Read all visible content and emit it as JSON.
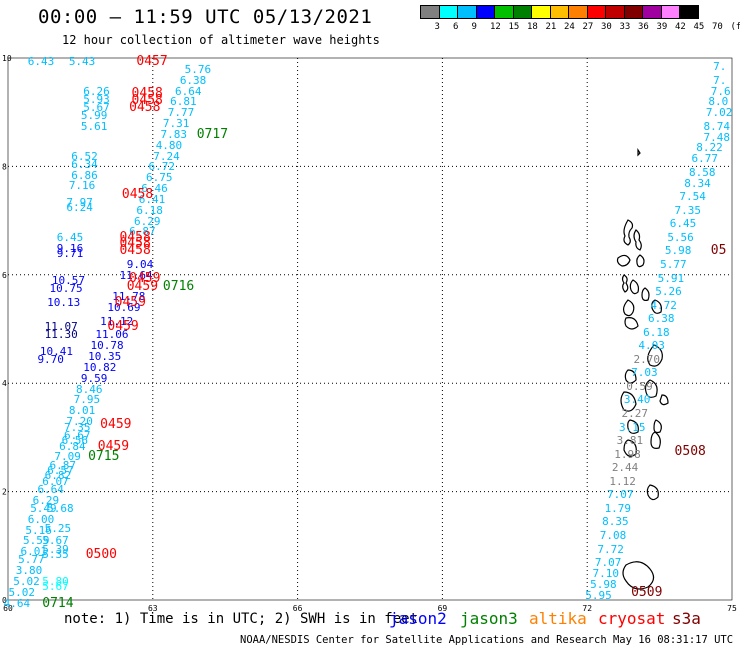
{
  "title": "00:00 – 11:59 UTC 05/13/2021",
  "subtitle": "12 hour collection of altimeter wave heights",
  "legend": {
    "colors": [
      "#808080",
      "#00ffff",
      "#00bfff",
      "#0000ff",
      "#00c000",
      "#008000",
      "#ffff00",
      "#ffbf00",
      "#ff8000",
      "#ff0000",
      "#c00000",
      "#800000",
      "#a000a0",
      "#ff80ff",
      "#000000"
    ],
    "labels": [
      "3",
      "6",
      "9",
      "12",
      "15",
      "18",
      "21",
      "24",
      "27",
      "30",
      "33",
      "36",
      "39",
      "42",
      "45",
      "70",
      "(ft)"
    ]
  },
  "axes": {
    "x_ticks": [
      "60",
      "63",
      "66",
      "69",
      "72",
      "75"
    ],
    "y_ticks": [
      "0",
      "2",
      "4",
      "6",
      "8",
      "10"
    ]
  },
  "note": "note:  1) Time is in UTC;  2) SWH is in feet",
  "satellites": [
    {
      "name": "jason2",
      "color": "#0000ff"
    },
    {
      "name": "jason3",
      "color": "#008000"
    },
    {
      "name": "altika",
      "color": "#ff8000"
    },
    {
      "name": "cryosat",
      "color": "#ff0000"
    },
    {
      "name": "s3a",
      "color": "#800000"
    }
  ],
  "credit": "NOAA/NESDIS Center for Satellite Applications and Research    May 16 08:31:17 UTC 2021",
  "wave_heights": [
    {
      "t": "6.43",
      "x": 60.7,
      "y": 9.95,
      "c": "#00bfff"
    },
    {
      "t": "5.43",
      "x": 61.55,
      "y": 9.95,
      "c": "#00bfff"
    },
    {
      "t": "5.76",
      "x": 63.95,
      "y": 9.8,
      "c": "#00bfff"
    },
    {
      "t": "6.38",
      "x": 63.85,
      "y": 9.6,
      "c": "#00bfff"
    },
    {
      "t": "6.64",
      "x": 63.75,
      "y": 9.4,
      "c": "#00bfff"
    },
    {
      "t": "6.81",
      "x": 63.65,
      "y": 9.2,
      "c": "#00bfff"
    },
    {
      "t": "7.77",
      "x": 63.6,
      "y": 9.0,
      "c": "#00bfff"
    },
    {
      "t": "7.31",
      "x": 63.5,
      "y": 8.8,
      "c": "#00bfff"
    },
    {
      "t": "7.83",
      "x": 63.45,
      "y": 8.6,
      "c": "#00bfff"
    },
    {
      "t": "4.80",
      "x": 63.35,
      "y": 8.4,
      "c": "#00bfff"
    },
    {
      "t": "7.24",
      "x": 63.3,
      "y": 8.2,
      "c": "#00bfff"
    },
    {
      "t": "6.72",
      "x": 63.2,
      "y": 8.0,
      "c": "#00bfff"
    },
    {
      "t": "6.75",
      "x": 63.15,
      "y": 7.8,
      "c": "#00bfff"
    },
    {
      "t": "6.46",
      "x": 63.05,
      "y": 7.6,
      "c": "#00bfff"
    },
    {
      "t": "6.41",
      "x": 63.0,
      "y": 7.4,
      "c": "#00bfff"
    },
    {
      "t": "6.18",
      "x": 62.95,
      "y": 7.2,
      "c": "#00bfff"
    },
    {
      "t": "6.29",
      "x": 62.9,
      "y": 7.0,
      "c": "#00bfff"
    },
    {
      "t": "6.87",
      "x": 62.8,
      "y": 6.8,
      "c": "#00bfff"
    },
    {
      "t": "6.26",
      "x": 61.85,
      "y": 9.4,
      "c": "#00bfff"
    },
    {
      "t": "5.93",
      "x": 61.85,
      "y": 9.25,
      "c": "#00bfff"
    },
    {
      "t": "5.67",
      "x": 61.85,
      "y": 9.1,
      "c": "#00bfff"
    },
    {
      "t": "5.99",
      "x": 61.8,
      "y": 8.95,
      "c": "#00bfff"
    },
    {
      "t": "5.61",
      "x": 61.8,
      "y": 8.75,
      "c": "#00bfff"
    },
    {
      "t": "6.52",
      "x": 61.6,
      "y": 8.2,
      "c": "#00bfff"
    },
    {
      "t": "6.34",
      "x": 61.6,
      "y": 8.05,
      "c": "#00bfff"
    },
    {
      "t": "6.86",
      "x": 61.6,
      "y": 7.85,
      "c": "#00bfff"
    },
    {
      "t": "7.16",
      "x": 61.55,
      "y": 7.65,
      "c": "#00bfff"
    },
    {
      "t": "7.97",
      "x": 61.5,
      "y": 7.35,
      "c": "#00bfff"
    },
    {
      "t": "6.24",
      "x": 61.5,
      "y": 7.25,
      "c": "#00bfff"
    },
    {
      "t": "6.45",
      "x": 61.3,
      "y": 6.7,
      "c": "#00bfff"
    },
    {
      "t": "9.16",
      "x": 61.3,
      "y": 6.5,
      "c": "#0000ff"
    },
    {
      "t": "9.71",
      "x": 61.3,
      "y": 6.4,
      "c": "#0000ff"
    },
    {
      "t": "9.04",
      "x": 62.75,
      "y": 6.2,
      "c": "#0000ff"
    },
    {
      "t": "11.64",
      "x": 62.6,
      "y": 6.0,
      "c": "#0000ff"
    },
    {
      "t": "10.57",
      "x": 61.2,
      "y": 5.9,
      "c": "#0000ff"
    },
    {
      "t": "10.75",
      "x": 61.15,
      "y": 5.75,
      "c": "#0000ff"
    },
    {
      "t": "11.78",
      "x": 62.45,
      "y": 5.6,
      "c": "#0000ff"
    },
    {
      "t": "10.13",
      "x": 61.1,
      "y": 5.5,
      "c": "#0000ff"
    },
    {
      "t": "10.69",
      "x": 62.35,
      "y": 5.4,
      "c": "#0000ff"
    },
    {
      "t": "11.12",
      "x": 62.2,
      "y": 5.15,
      "c": "#0000ff"
    },
    {
      "t": "11.07",
      "x": 61.05,
      "y": 5.05,
      "c": "#000080"
    },
    {
      "t": "11.30",
      "x": 61.05,
      "y": 4.9,
      "c": "#000080"
    },
    {
      "t": "11.06",
      "x": 62.1,
      "y": 4.9,
      "c": "#0000ff"
    },
    {
      "t": "10.78",
      "x": 62.0,
      "y": 4.7,
      "c": "#0000ff"
    },
    {
      "t": "10.41",
      "x": 60.95,
      "y": 4.6,
      "c": "#0000ff"
    },
    {
      "t": "10.35",
      "x": 61.95,
      "y": 4.5,
      "c": "#0000ff"
    },
    {
      "t": "9.70",
      "x": 60.9,
      "y": 4.45,
      "c": "#0000ff"
    },
    {
      "t": "10.82",
      "x": 61.85,
      "y": 4.3,
      "c": "#0000ff"
    },
    {
      "t": "9.59",
      "x": 61.8,
      "y": 4.1,
      "c": "#0000ff"
    },
    {
      "t": "8.46",
      "x": 61.7,
      "y": 3.9,
      "c": "#00bfff"
    },
    {
      "t": "7.95",
      "x": 61.65,
      "y": 3.7,
      "c": "#00bfff"
    },
    {
      "t": "8.01",
      "x": 61.55,
      "y": 3.5,
      "c": "#00bfff"
    },
    {
      "t": "7.20",
      "x": 61.5,
      "y": 3.3,
      "c": "#00bfff"
    },
    {
      "t": "7.35",
      "x": 61.45,
      "y": 3.2,
      "c": "#00bfff"
    },
    {
      "t": "6.67",
      "x": 61.45,
      "y": 3.05,
      "c": "#00bfff"
    },
    {
      "t": "6.56",
      "x": 61.4,
      "y": 2.95,
      "c": "#00bfff"
    },
    {
      "t": "6.84",
      "x": 61.35,
      "y": 2.85,
      "c": "#00bfff"
    },
    {
      "t": "7.09",
      "x": 61.25,
      "y": 2.65,
      "c": "#00bfff"
    },
    {
      "t": "6.87",
      "x": 61.15,
      "y": 2.5,
      "c": "#00bfff"
    },
    {
      "t": "6.57",
      "x": 61.1,
      "y": 2.4,
      "c": "#00bfff"
    },
    {
      "t": "6.82",
      "x": 61.05,
      "y": 2.3,
      "c": "#00bfff"
    },
    {
      "t": "6.07",
      "x": 61.0,
      "y": 2.2,
      "c": "#00bfff"
    },
    {
      "t": "6.64",
      "x": 60.9,
      "y": 2.05,
      "c": "#00bfff"
    },
    {
      "t": "6.29",
      "x": 60.8,
      "y": 1.85,
      "c": "#00bfff"
    },
    {
      "t": "5.49",
      "x": 60.75,
      "y": 1.7,
      "c": "#00bfff"
    },
    {
      "t": "5.68",
      "x": 61.1,
      "y": 1.7,
      "c": "#00bfff"
    },
    {
      "t": "6.00",
      "x": 60.7,
      "y": 1.5,
      "c": "#00bfff"
    },
    {
      "t": "5.16",
      "x": 60.65,
      "y": 1.3,
      "c": "#00bfff"
    },
    {
      "t": "5.25",
      "x": 61.05,
      "y": 1.32,
      "c": "#00bfff"
    },
    {
      "t": "5.59",
      "x": 60.6,
      "y": 1.1,
      "c": "#00bfff"
    },
    {
      "t": "5.67",
      "x": 61.0,
      "y": 1.1,
      "c": "#00bfff"
    },
    {
      "t": "6.01",
      "x": 60.55,
      "y": 0.9,
      "c": "#00bfff"
    },
    {
      "t": "5.39",
      "x": 61.0,
      "y": 0.95,
      "c": "#00bfff"
    },
    {
      "t": "5.35",
      "x": 61.0,
      "y": 0.85,
      "c": "#00bfff"
    },
    {
      "t": "5.77",
      "x": 60.5,
      "y": 0.75,
      "c": "#00bfff"
    },
    {
      "t": "3.80",
      "x": 60.45,
      "y": 0.55,
      "c": "#00bfff"
    },
    {
      "t": "5.02",
      "x": 60.4,
      "y": 0.35,
      "c": "#00bfff"
    },
    {
      "t": "5.02",
      "x": 60.3,
      "y": 0.15,
      "c": "#00bfff"
    },
    {
      "t": "5.80",
      "x": 61.0,
      "y": 0.35,
      "c": "#00ffff"
    },
    {
      "t": "5.67",
      "x": 61.0,
      "y": 0.25,
      "c": "#00ffff"
    },
    {
      "t": "4.64",
      "x": 60.2,
      "y": -0.05,
      "c": "#00bfff"
    },
    {
      "t": "7.",
      "x": 74.9,
      "y": 9.85,
      "c": "#00bfff"
    },
    {
      "t": "7.",
      "x": 74.9,
      "y": 9.6,
      "c": "#00bfff"
    },
    {
      "t": "7.6",
      "x": 74.85,
      "y": 9.4,
      "c": "#00bfff"
    },
    {
      "t": "8.0",
      "x": 74.8,
      "y": 9.2,
      "c": "#00bfff"
    },
    {
      "t": "7.02",
      "x": 74.75,
      "y": 9.0,
      "c": "#00bfff"
    },
    {
      "t": "8.74",
      "x": 74.7,
      "y": 8.75,
      "c": "#00bfff"
    },
    {
      "t": "7.48",
      "x": 74.7,
      "y": 8.55,
      "c": "#00bfff"
    },
    {
      "t": "8.22",
      "x": 74.55,
      "y": 8.35,
      "c": "#00bfff"
    },
    {
      "t": "6.77",
      "x": 74.45,
      "y": 8.15,
      "c": "#00bfff"
    },
    {
      "t": "8.58",
      "x": 74.4,
      "y": 7.9,
      "c": "#00bfff"
    },
    {
      "t": "8.34",
      "x": 74.3,
      "y": 7.7,
      "c": "#00bfff"
    },
    {
      "t": "7.54",
      "x": 74.2,
      "y": 7.45,
      "c": "#00bfff"
    },
    {
      "t": "7.35",
      "x": 74.1,
      "y": 7.2,
      "c": "#00bfff"
    },
    {
      "t": "6.45",
      "x": 74.0,
      "y": 6.95,
      "c": "#00bfff"
    },
    {
      "t": "5.56",
      "x": 73.95,
      "y": 6.7,
      "c": "#00bfff"
    },
    {
      "t": "5.98",
      "x": 73.9,
      "y": 6.45,
      "c": "#00bfff"
    },
    {
      "t": "5.77",
      "x": 73.8,
      "y": 6.2,
      "c": "#00bfff"
    },
    {
      "t": "5.91",
      "x": 73.75,
      "y": 5.95,
      "c": "#00bfff"
    },
    {
      "t": "5.26",
      "x": 73.7,
      "y": 5.7,
      "c": "#00bfff"
    },
    {
      "t": "4.72",
      "x": 73.6,
      "y": 5.45,
      "c": "#00bfff"
    },
    {
      "t": "6.38",
      "x": 73.55,
      "y": 5.2,
      "c": "#00bfff"
    },
    {
      "t": "6.18",
      "x": 73.45,
      "y": 4.95,
      "c": "#00bfff"
    },
    {
      "t": "4.03",
      "x": 73.35,
      "y": 4.7,
      "c": "#00bfff"
    },
    {
      "t": "2.70",
      "x": 73.25,
      "y": 4.45,
      "c": "#808080"
    },
    {
      "t": "7.03",
      "x": 73.2,
      "y": 4.2,
      "c": "#00bfff"
    },
    {
      "t": "0.59",
      "x": 73.1,
      "y": 3.95,
      "c": "#808080"
    },
    {
      "t": "3.40",
      "x": 73.05,
      "y": 3.7,
      "c": "#00bfff"
    },
    {
      "t": "2.27",
      "x": 73.0,
      "y": 3.45,
      "c": "#808080"
    },
    {
      "t": "3.15",
      "x": 72.95,
      "y": 3.2,
      "c": "#00bfff"
    },
    {
      "t": "3.81",
      "x": 72.9,
      "y": 2.95,
      "c": "#808080"
    },
    {
      "t": "1.98",
      "x": 72.85,
      "y": 2.7,
      "c": "#808080"
    },
    {
      "t": "2.44",
      "x": 72.8,
      "y": 2.45,
      "c": "#808080"
    },
    {
      "t": "1.12",
      "x": 72.75,
      "y": 2.2,
      "c": "#808080"
    },
    {
      "t": "7.07",
      "x": 72.7,
      "y": 1.95,
      "c": "#00bfff"
    },
    {
      "t": "1.79",
      "x": 72.65,
      "y": 1.7,
      "c": "#00bfff"
    },
    {
      "t": "8.35",
      "x": 72.6,
      "y": 1.45,
      "c": "#00bfff"
    },
    {
      "t": "7.08",
      "x": 72.55,
      "y": 1.2,
      "c": "#00bfff"
    },
    {
      "t": "7.72",
      "x": 72.5,
      "y": 0.95,
      "c": "#00bfff"
    },
    {
      "t": "7.07",
      "x": 72.45,
      "y": 0.7,
      "c": "#00bfff"
    },
    {
      "t": "7.10",
      "x": 72.4,
      "y": 0.5,
      "c": "#00bfff"
    },
    {
      "t": "5.98",
      "x": 72.35,
      "y": 0.3,
      "c": "#00bfff"
    },
    {
      "t": "5.95",
      "x": 72.25,
      "y": 0.1,
      "c": "#00bfff"
    }
  ],
  "pass_times": [
    {
      "t": "0457",
      "x": 62.95,
      "y": 9.95,
      "c": "#ff0000"
    },
    {
      "t": "0458",
      "x": 62.85,
      "y": 9.35,
      "c": "#ff0000"
    },
    {
      "t": "0458",
      "x": 62.85,
      "y": 9.22,
      "c": "#ff0000"
    },
    {
      "t": "0458",
      "x": 62.8,
      "y": 9.1,
      "c": "#ff0000"
    },
    {
      "t": "0717",
      "x": 64.2,
      "y": 8.6,
      "c": "#008000"
    },
    {
      "t": "0458",
      "x": 62.65,
      "y": 7.5,
      "c": "#ff0000"
    },
    {
      "t": "0458",
      "x": 62.6,
      "y": 6.7,
      "c": "#ff0000"
    },
    {
      "t": "0458",
      "x": 62.6,
      "y": 6.58,
      "c": "#ff0000"
    },
    {
      "t": "0458",
      "x": 62.6,
      "y": 6.46,
      "c": "#ff0000"
    },
    {
      "t": "0459",
      "x": 62.8,
      "y": 5.95,
      "c": "#ff0000"
    },
    {
      "t": "0459",
      "x": 62.75,
      "y": 5.8,
      "c": "#ff0000"
    },
    {
      "t": "0716",
      "x": 63.5,
      "y": 5.8,
      "c": "#008000"
    },
    {
      "t": "0459",
      "x": 62.5,
      "y": 5.5,
      "c": "#ff0000"
    },
    {
      "t": "0459",
      "x": 62.35,
      "y": 5.05,
      "c": "#ff0000"
    },
    {
      "t": "0459",
      "x": 62.2,
      "y": 3.25,
      "c": "#ff0000"
    },
    {
      "t": "0459",
      "x": 62.15,
      "y": 2.85,
      "c": "#ff0000"
    },
    {
      "t": "0715",
      "x": 61.95,
      "y": 2.65,
      "c": "#008000"
    },
    {
      "t": "0500",
      "x": 61.9,
      "y": 0.85,
      "c": "#ff0000"
    },
    {
      "t": "0714",
      "x": 61.0,
      "y": -0.05,
      "c": "#008000"
    },
    {
      "t": "05",
      "x": 74.85,
      "y": 6.45,
      "c": "#800000"
    },
    {
      "t": "0508",
      "x": 74.1,
      "y": 2.75,
      "c": "#800000"
    },
    {
      "t": "0509",
      "x": 73.2,
      "y": 0.15,
      "c": "#800000"
    }
  ]
}
